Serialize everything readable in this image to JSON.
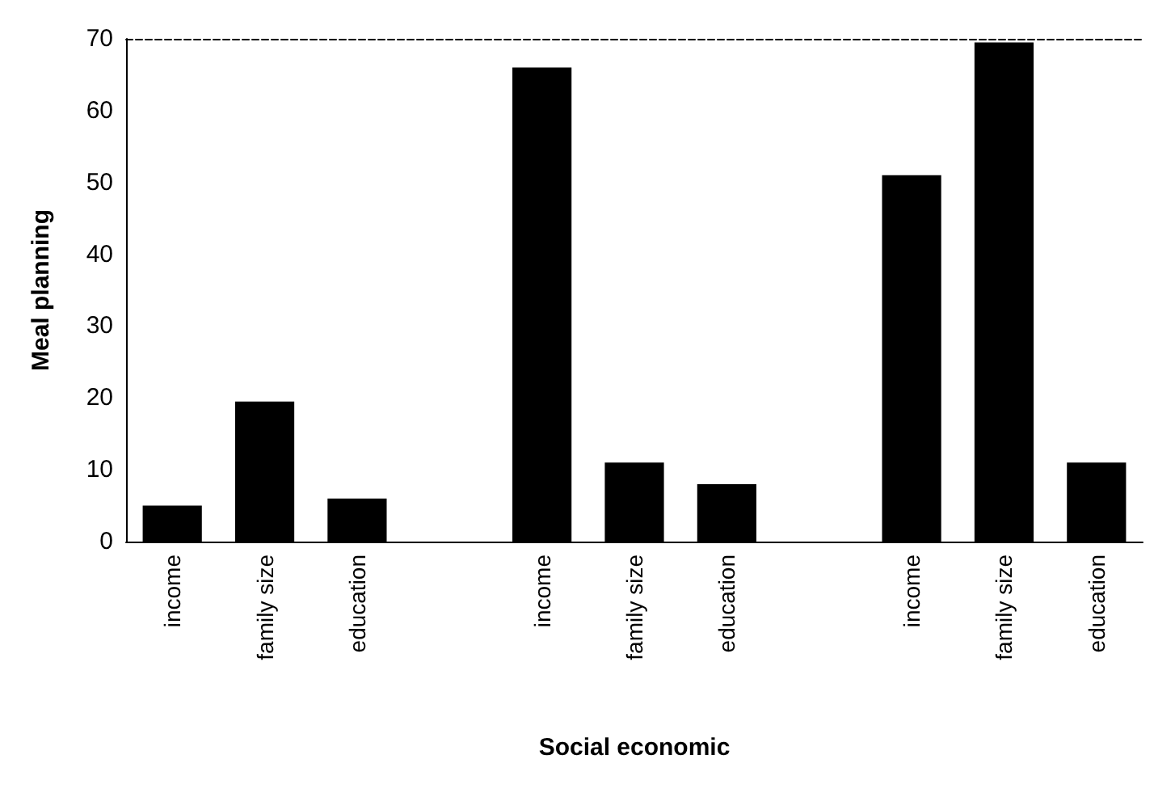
{
  "chart_data": {
    "type": "bar",
    "xlabel": "Social economic",
    "ylabel": "Meal planning",
    "categories": [
      "income",
      "family size",
      "education",
      null,
      "income",
      "family size",
      "education",
      null,
      "income",
      "family size",
      "education"
    ],
    "values": [
      5,
      19.5,
      6,
      null,
      66,
      11,
      8,
      null,
      51,
      69.5,
      11
    ],
    "color": "#000000",
    "ylim": [
      0,
      70
    ],
    "yticks": [
      0,
      10,
      20,
      30,
      40,
      50,
      60,
      70
    ],
    "grid": false
  }
}
